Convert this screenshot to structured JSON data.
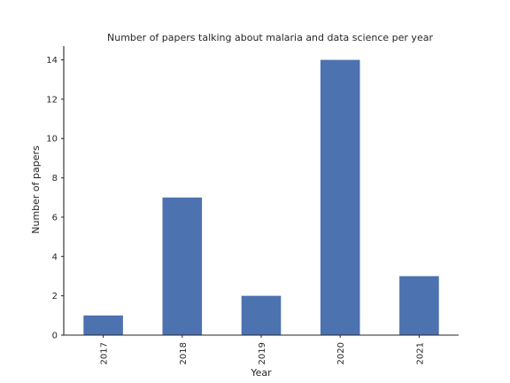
{
  "chart_data": {
    "type": "bar",
    "title": "Number of papers talking about malaria and data science per year",
    "xlabel": "Year",
    "ylabel": "Number of papers",
    "categories": [
      "2017",
      "2018",
      "2019",
      "2020",
      "2021"
    ],
    "values": [
      1,
      7,
      2,
      14,
      3
    ],
    "yticks": [
      0,
      2,
      4,
      6,
      8,
      10,
      12,
      14
    ],
    "ylim": [
      0,
      14.7
    ],
    "grid": false,
    "bar_color": "#4c72b0",
    "x_tick_rotation": "vertical"
  }
}
